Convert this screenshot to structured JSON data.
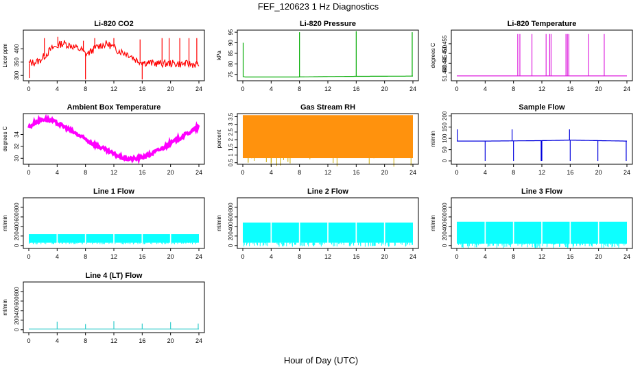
{
  "figure": {
    "title": "FEF_120623  1 Hz Diagnostics",
    "xlabel": "Hour of Day (UTC)"
  },
  "chart_data": [
    {
      "type": "line",
      "title": "Li-820 CO2",
      "ylabel": "Licor ppm",
      "color": "#ff0000",
      "xlim": [
        0,
        24
      ],
      "ylim": [
        280,
        470
      ],
      "xticks": [
        0,
        4,
        8,
        12,
        16,
        20,
        24
      ],
      "yticks": [
        300,
        350,
        400
      ],
      "series": [
        {
          "x": [
            0,
            0.5,
            1,
            1.5,
            2,
            2.5,
            3,
            3.5,
            4,
            4.5,
            5,
            5.5,
            6,
            6.5,
            7,
            7.5,
            8,
            8.5,
            9,
            9.5,
            10,
            10.5,
            11,
            11.5,
            12,
            12.5,
            13,
            13.5,
            14,
            14.5,
            15,
            15.5,
            16,
            16.5,
            17,
            17.5,
            18,
            18.5,
            19,
            19.5,
            20,
            20.5,
            21,
            21.5,
            22,
            22.5,
            23,
            23.5,
            24
          ],
          "y": [
            345,
            348,
            350,
            355,
            368,
            380,
            395,
            405,
            410,
            418,
            420,
            415,
            412,
            405,
            400,
            395,
            380,
            385,
            395,
            405,
            412,
            415,
            418,
            412,
            405,
            395,
            390,
            385,
            380,
            372,
            360,
            355,
            350,
            348,
            347,
            346,
            345,
            345,
            344,
            344,
            345,
            344,
            344,
            343,
            343,
            343,
            342,
            342,
            342
          ],
          "spikes": [
            [
              0.1,
              290
            ],
            [
              2.2,
              440
            ],
            [
              4.1,
              445
            ],
            [
              7.7,
              430
            ],
            [
              8.0,
              285
            ],
            [
              9.3,
              440
            ],
            [
              12.0,
              440
            ],
            [
              15.7,
              435
            ],
            [
              16.0,
              285
            ],
            [
              18.8,
              440
            ],
            [
              19.8,
              440
            ],
            [
              21.3,
              440
            ],
            [
              22.6,
              440
            ],
            [
              23.7,
              440
            ]
          ]
        }
      ]
    },
    {
      "type": "line",
      "title": "Li-820 Pressure",
      "ylabel": "kPa",
      "color": "#00aa00",
      "xlim": [
        0,
        24
      ],
      "ylim": [
        72,
        96
      ],
      "xticks": [
        0,
        4,
        8,
        12,
        16,
        20,
        24
      ],
      "yticks": [
        75,
        80,
        85,
        90,
        95
      ],
      "series": [
        {
          "x": [
            0,
            0.3,
            8,
            12,
            16,
            23.8,
            24
          ],
          "y": [
            74.0,
            73.8,
            73.8,
            74.0,
            74.1,
            74.2,
            74.2
          ],
          "spikes": [
            [
              0.05,
              90.0
            ],
            [
              8.0,
              95.0
            ],
            [
              16.0,
              95.5
            ],
            [
              23.9,
              95.0
            ]
          ]
        }
      ]
    },
    {
      "type": "line",
      "title": "Li-820 Temperature",
      "ylabel": "degrees C",
      "color": "#dd22dd",
      "xlim": [
        0,
        24
      ],
      "ylim": [
        51.436,
        51.462
      ],
      "xticks": [
        0,
        4,
        8,
        12,
        16,
        20,
        24
      ],
      "ytick_values": [
        51.44,
        51.445,
        51.45,
        51.455
      ],
      "yticks": [
        "51.440",
        "51.445",
        "51.450",
        "51.455"
      ],
      "series": [
        {
          "x": [
            0,
            24
          ],
          "y": [
            51.4385,
            51.4385
          ],
          "spikes": [
            [
              8.6,
              51.46
            ],
            [
              8.9,
              51.46
            ],
            [
              10.6,
              51.46
            ],
            [
              12.6,
              51.46
            ],
            [
              13.1,
              51.46
            ],
            [
              13.3,
              51.46
            ],
            [
              15.4,
              51.46
            ],
            [
              15.6,
              51.46
            ],
            [
              15.8,
              51.46
            ],
            [
              18.6,
              51.46
            ],
            [
              20.8,
              51.46
            ]
          ]
        }
      ]
    },
    {
      "type": "line",
      "title": "Ambient Box Temperature",
      "ylabel": "degrees C",
      "color": "#ff00ff",
      "xlim": [
        0,
        24
      ],
      "ylim": [
        29,
        37.5
      ],
      "xticks": [
        0,
        4,
        8,
        12,
        16,
        20,
        24
      ],
      "yticks": [
        30,
        32,
        34
      ],
      "band": 0.6,
      "series": [
        {
          "x": [
            0,
            1,
            2,
            3,
            4,
            5,
            6,
            7,
            8,
            9,
            10,
            11,
            12,
            13,
            14,
            15,
            16,
            17,
            18,
            19,
            20,
            21,
            22,
            23,
            24
          ],
          "y": [
            35.2,
            36.1,
            36.6,
            36.4,
            35.9,
            35.3,
            34.6,
            33.9,
            33.2,
            32.5,
            31.9,
            31.3,
            30.7,
            30.2,
            29.9,
            29.9,
            30.2,
            30.6,
            31.2,
            31.8,
            32.5,
            33.2,
            33.9,
            34.6,
            35.3
          ]
        }
      ]
    },
    {
      "type": "area",
      "title": "Gas Stream RH",
      "ylabel": "percent",
      "color": "#ff8c00",
      "color2": "#ccaa00",
      "xlim": [
        0,
        24
      ],
      "ylim": [
        0.4,
        3.7
      ],
      "xticks": [
        0,
        4,
        8,
        12,
        16,
        20,
        24
      ],
      "yticks": [
        0.5,
        1.0,
        1.5,
        2.0,
        2.5,
        3.0,
        3.5
      ],
      "upper": 3.6,
      "lower": 0.8
    },
    {
      "type": "line",
      "title": "Sample Flow",
      "ylabel": "ml/min",
      "color": "#0000dd",
      "xlim": [
        0,
        24
      ],
      "ylim": [
        -15,
        210
      ],
      "xticks": [
        0,
        4,
        8,
        12,
        16,
        20,
        24
      ],
      "yticks": [
        0,
        50,
        100,
        150,
        200
      ],
      "series": [
        {
          "x": [
            0,
            4,
            8,
            12,
            16,
            20,
            24
          ],
          "y": [
            88,
            88,
            89,
            90,
            92,
            90,
            88
          ],
          "spikes": [
            [
              0.1,
              140
            ],
            [
              4.0,
              0
            ],
            [
              7.8,
              140
            ],
            [
              8.0,
              0
            ],
            [
              11.9,
              0
            ],
            [
              12.0,
              0
            ],
            [
              15.9,
              140
            ],
            [
              16.0,
              0
            ],
            [
              19.9,
              0
            ],
            [
              23.9,
              0
            ]
          ]
        }
      ]
    },
    {
      "type": "area",
      "title": "Line 1 Flow",
      "ylabel": "ml/min",
      "color": "#00ffff",
      "xlim": [
        0,
        24
      ],
      "ylim": [
        -60,
        1000
      ],
      "xticks": [
        0,
        4,
        8,
        12,
        16,
        20,
        24
      ],
      "yticks": [
        0,
        200,
        400,
        600,
        800
      ],
      "upper": 240,
      "lower": 60,
      "gaps": [
        4,
        8,
        12,
        16,
        20
      ]
    },
    {
      "type": "area",
      "title": "Line 2 Flow",
      "ylabel": "ml/min",
      "color": "#00ffff",
      "xlim": [
        0,
        24
      ],
      "ylim": [
        -60,
        1000
      ],
      "xticks": [
        0,
        4,
        8,
        12,
        16,
        20,
        24
      ],
      "yticks": [
        0,
        200,
        400,
        600,
        800
      ],
      "upper": 480,
      "lower": 60,
      "gaps": [
        4,
        8,
        12,
        16,
        20
      ]
    },
    {
      "type": "area",
      "title": "Line 3 Flow",
      "ylabel": "ml/min",
      "color": "#00ffff",
      "xlim": [
        0,
        24
      ],
      "ylim": [
        -60,
        1000
      ],
      "xticks": [
        0,
        4,
        8,
        12,
        16,
        20,
        24
      ],
      "yticks": [
        0,
        200,
        400,
        600,
        800
      ],
      "upper": 500,
      "lower": 40,
      "gaps": [
        4,
        8,
        12,
        16,
        20
      ]
    },
    {
      "type": "line",
      "title": "Line 4 (LT) Flow",
      "ylabel": "ml/min",
      "color": "#33cccc",
      "xlim": [
        0,
        24
      ],
      "ylim": [
        -60,
        1000
      ],
      "xticks": [
        0,
        4,
        8,
        12,
        16,
        20,
        24
      ],
      "yticks": [
        0,
        200,
        400,
        600,
        800
      ],
      "series": [
        {
          "x": [
            0,
            24
          ],
          "y": [
            15,
            15
          ],
          "spikes": [
            [
              4.0,
              170
            ],
            [
              8.0,
              120
            ],
            [
              12.0,
              180
            ],
            [
              16.0,
              130
            ],
            [
              20.0,
              160
            ],
            [
              23.9,
              130
            ]
          ]
        }
      ]
    }
  ]
}
